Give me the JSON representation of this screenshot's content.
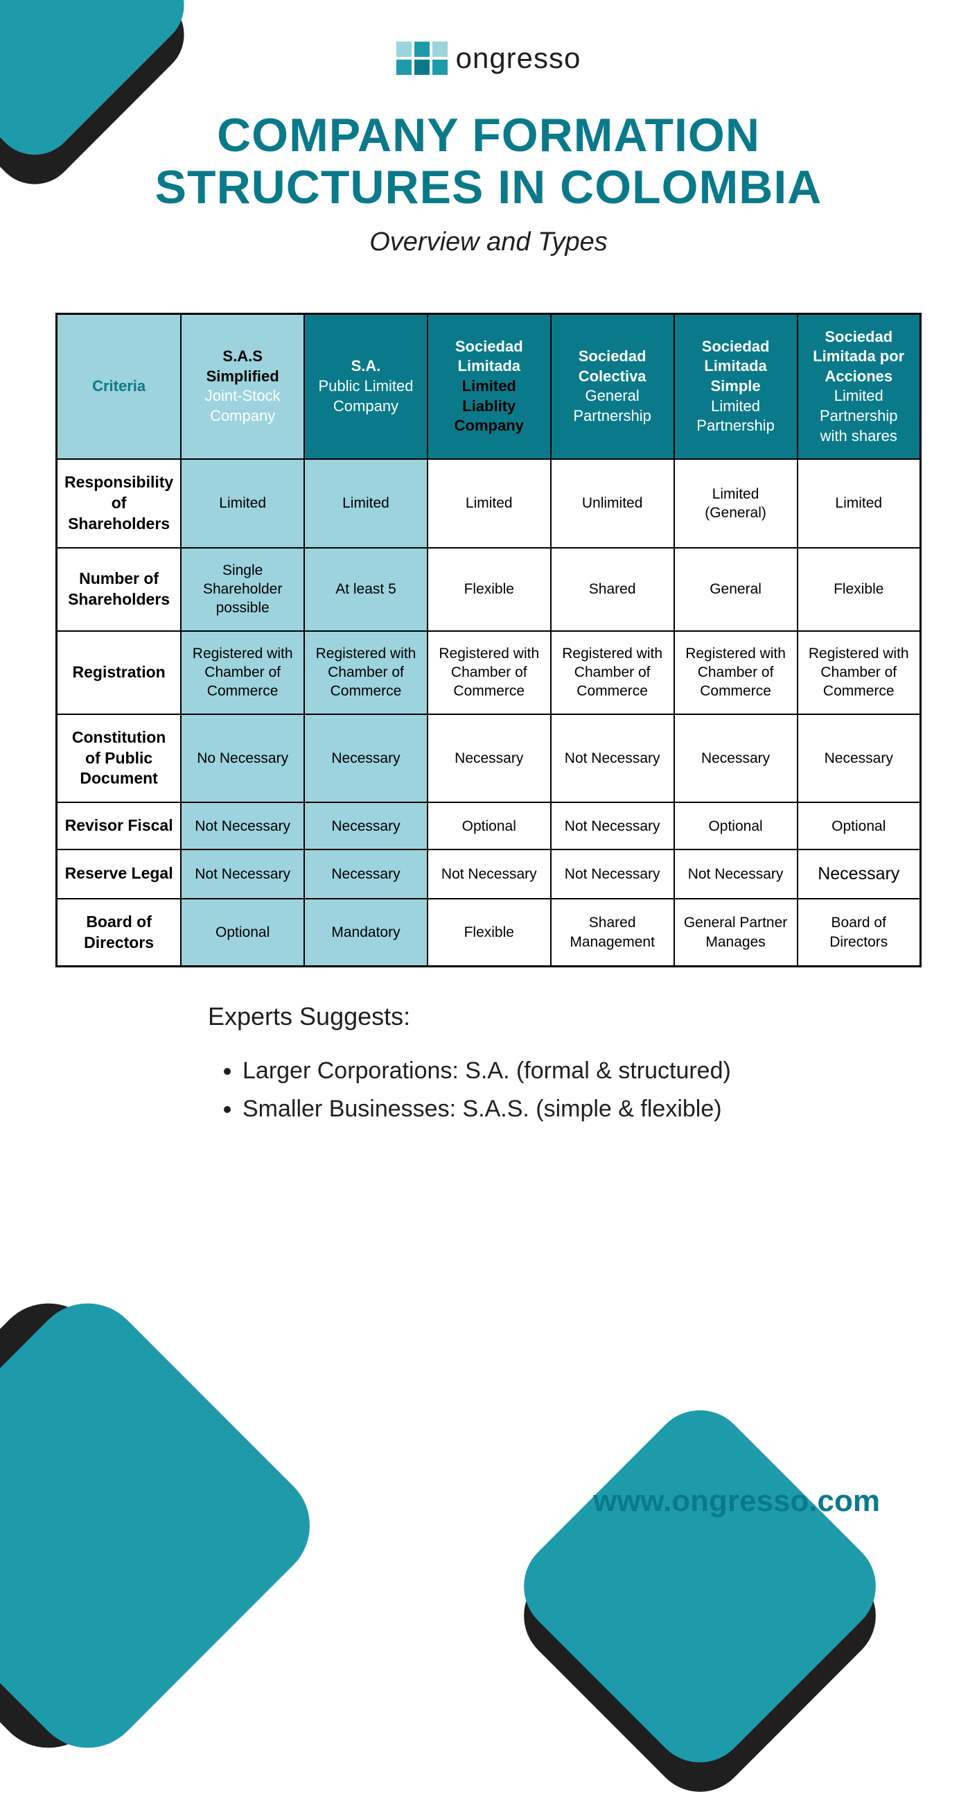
{
  "colors": {
    "teal": "#1d9bab",
    "teal_dark": "#0a7a8a",
    "light_teal": "#9dd3dc",
    "dark": "#1f1f1f",
    "black": "#000000",
    "white": "#ffffff"
  },
  "logo": {
    "text": "ongresso",
    "squares": [
      {
        "color": "#9dd3dc"
      },
      {
        "color": "#1d9bab"
      },
      {
        "color": "#9dd3dc"
      },
      {
        "color": "#1d9bab"
      },
      {
        "color": "#0a7a8a"
      },
      {
        "color": "#1d9bab"
      }
    ]
  },
  "title": "COMPANY FORMATION STRUCTURES IN COLOMBIA",
  "subtitle": "Overview and Types",
  "table": {
    "header_bg_criteria": "#9dd3dc",
    "header_bg_col1": "#9dd3dc",
    "header_bg_dark": "#0a7a8a",
    "header_text_dark": "#000000",
    "header_text_light": "#ffffff",
    "criteria_label": "Criteria",
    "columns": [
      {
        "strong": "S.A.S\nSimplified",
        "light": "Joint-Stock Company",
        "bg": "#9dd3dc",
        "text_strong": "#000000",
        "text_light": "#ffffff"
      },
      {
        "strong": "S.A.",
        "light": "Public Limited Company",
        "bg": "#0a7a8a",
        "text_strong": "#ffffff",
        "text_light": "#ffffff"
      },
      {
        "strong": "Sociedad Limitada",
        "light": "Limited Liablity Company",
        "bg": "#0a7a8a",
        "text_strong": "#ffffff",
        "text_light": "#000000"
      },
      {
        "strong": "Sociedad Colectiva",
        "light": "General Partnership",
        "bg": "#0a7a8a",
        "text_strong": "#ffffff",
        "text_light": "#ffffff"
      },
      {
        "strong": "Sociedad Limitada Simple",
        "light": "Limited Partnership",
        "bg": "#0a7a8a",
        "text_strong": "#ffffff",
        "text_light": "#ffffff"
      },
      {
        "strong": "Sociedad Limitada por Acciones",
        "light": "Limited Partnership with shares",
        "bg": "#0a7a8a",
        "text_strong": "#ffffff",
        "text_light": "#ffffff"
      }
    ],
    "rows": [
      {
        "criteria": "Responsibility of Shareholders",
        "cells": [
          "Limited",
          "Limited",
          "Limited",
          "Unlimited",
          "Limited (General)",
          "Limited"
        ]
      },
      {
        "criteria": "Number of Shareholders",
        "cells": [
          "Single Shareholder possible",
          "At least 5",
          "Flexible",
          "Shared",
          "General",
          "Flexible"
        ]
      },
      {
        "criteria": "Registration",
        "cells": [
          "Registered with Chamber of Commerce",
          "Registered with Chamber of Commerce",
          "Registered with Chamber of Commerce",
          "Registered with Chamber of Commerce",
          "Registered with Chamber of Commerce",
          "Registered with Chamber of Commerce"
        ]
      },
      {
        "criteria": "Constitution of Public Document",
        "cells": [
          "No Necessary",
          "Necessary",
          "Necessary",
          "Not Necessary",
          "Necessary",
          "Necessary"
        ]
      },
      {
        "criteria": "Revisor Fiscal",
        "cells": [
          "Not Necessary",
          "Necessary",
          "Optional",
          "Not Necessary",
          "Optional",
          "Optional"
        ]
      },
      {
        "criteria": "Reserve Legal",
        "cells": [
          "Not Necessary",
          "Necessary",
          "Not Necessary",
          "Not Necessary",
          "Not Necessary",
          "Necessary"
        ]
      },
      {
        "criteria": "Board of Directors",
        "cells": [
          "Optional",
          "Mandatory",
          "Flexible",
          "Shared Management",
          "General Partner Manages",
          "Board of Directors"
        ]
      }
    ],
    "col_bg": [
      "#9dd3dc",
      "#9dd3dc",
      "#ffffff",
      "#ffffff",
      "#ffffff",
      "#ffffff"
    ]
  },
  "suggests": {
    "title": "Experts Suggests:",
    "items": [
      "Larger Corporations: S.A. (formal & structured)",
      "Smaller Businesses: S.A.S. (simple & flexible)"
    ]
  },
  "website": "www.ongresso.com"
}
